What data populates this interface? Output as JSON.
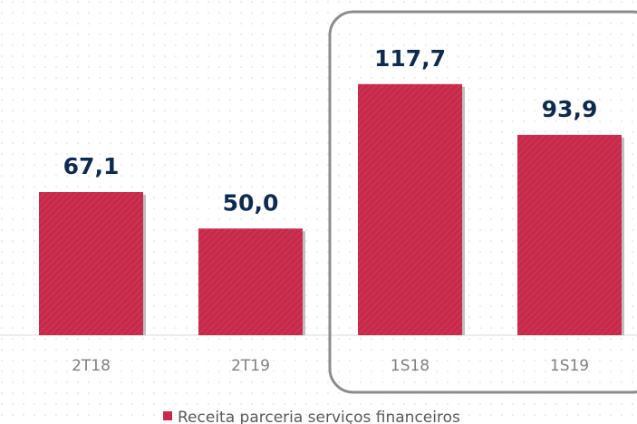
{
  "chart_data": {
    "type": "bar",
    "categories": [
      "2T18",
      "2T19",
      "1S18",
      "1S19"
    ],
    "series": [
      {
        "name": "Receita parceria serviços financeiros",
        "color": "#c8294a",
        "values": [
          67.1,
          50.0,
          117.7,
          93.9
        ],
        "value_labels": [
          "67,1",
          "50,0",
          "117,7",
          "93,9"
        ]
      }
    ],
    "ylim": [
      0,
      120
    ]
  }
}
